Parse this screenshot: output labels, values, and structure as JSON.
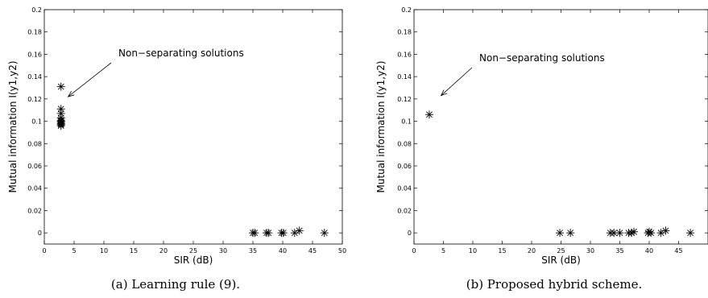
{
  "chart_data": [
    {
      "type": "scatter",
      "xlabel": "SIR (dB)",
      "ylabel": "Mutual information I(y1,y2)",
      "xlim": [
        0,
        50
      ],
      "ylim": [
        -0.01,
        0.2
      ],
      "xticks": [
        0,
        5,
        10,
        15,
        20,
        25,
        30,
        35,
        40,
        45,
        50
      ],
      "yticks": [
        0,
        0.02,
        0.04,
        0.06,
        0.08,
        0.1,
        0.12,
        0.14,
        0.16,
        0.18,
        0.2
      ],
      "xticklabels": [
        "0",
        "5",
        "10",
        "15",
        "20",
        "25",
        "30",
        "35",
        "40",
        "45",
        "50"
      ],
      "yticklabels": [
        "0",
        "0.02",
        "0.04",
        "0.06",
        "0.08",
        "0.1",
        "0.12",
        "0.14",
        "0.16",
        "0.18",
        "0.2"
      ],
      "marker": "asterisk",
      "grid": false,
      "annotation": {
        "text": "Non−separating solutions",
        "arrow_to": [
          4.0,
          0.122
        ]
      },
      "caption": "(a) Learning rule (9).",
      "x": [
        2.8,
        2.8,
        2.8,
        2.8,
        2.8,
        2.8,
        2.8,
        2.8,
        2.8,
        2.8,
        35.0,
        35.3,
        37.3,
        37.6,
        39.8,
        40.1,
        42.0,
        42.8,
        47.0
      ],
      "y": [
        0.131,
        0.111,
        0.107,
        0.103,
        0.101,
        0.1,
        0.099,
        0.098,
        0.097,
        0.096,
        0.0,
        0.0,
        0.0,
        0.0,
        0.0,
        0.0,
        0.0,
        0.002,
        0.0
      ]
    },
    {
      "type": "scatter",
      "xlabel": "SIR (dB)",
      "ylabel": "Mutual information I(y1,y2)",
      "xlim": [
        0,
        50
      ],
      "ylim": [
        -0.01,
        0.2
      ],
      "xticks": [
        0,
        5,
        10,
        15,
        20,
        25,
        30,
        35,
        40,
        45
      ],
      "yticks": [
        0,
        0.02,
        0.04,
        0.06,
        0.08,
        0.1,
        0.12,
        0.14,
        0.16,
        0.18,
        0.2
      ],
      "xticklabels": [
        "0",
        "5",
        "10",
        "15",
        "20",
        "25",
        "30",
        "35",
        "40",
        "45"
      ],
      "yticklabels": [
        "0",
        "0.02",
        "0.04",
        "0.06",
        "0.08",
        "0.1",
        "0.12",
        "0.14",
        "0.16",
        "0.18",
        "0.2"
      ],
      "marker": "asterisk",
      "grid": false,
      "annotation": {
        "text": "Non−separating solutions",
        "arrow_to": [
          4.6,
          0.123
        ]
      },
      "caption": "(b) Proposed hybrid scheme.",
      "x": [
        2.6,
        24.8,
        26.6,
        33.4,
        34.0,
        35.0,
        36.5,
        37.0,
        37.4,
        39.8,
        40.0,
        40.3,
        42.0,
        42.8,
        47.0
      ],
      "y": [
        0.106,
        0.0,
        0.0,
        0.0,
        0.0,
        0.0,
        0.0,
        0.0,
        0.001,
        0.0,
        0.001,
        0.0,
        0.0,
        0.002,
        0.0
      ]
    }
  ]
}
